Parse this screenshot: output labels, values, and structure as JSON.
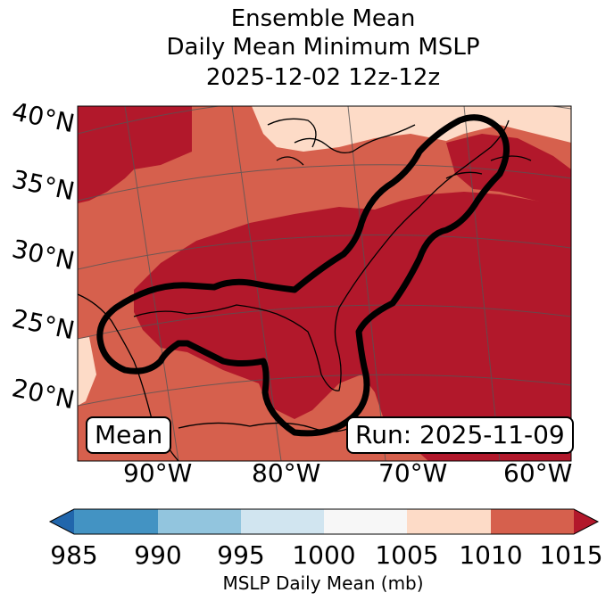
{
  "title": {
    "line1": "Ensemble Mean",
    "line2": "Daily Mean Minimum MSLP",
    "line3": "2025-12-02 12z-12z"
  },
  "map": {
    "lat_labels": [
      "40°N",
      "35°N",
      "30°N",
      "25°N",
      "20°N"
    ],
    "lon_labels": [
      "90°W",
      "80°W",
      "70°W",
      "60°W"
    ],
    "left_box": "Mean",
    "right_box": "Run: 2025-11-09"
  },
  "colorbar": {
    "ticks": [
      "985",
      "990",
      "995",
      "1000",
      "1005",
      "1010",
      "1015"
    ],
    "label": "MSLP Daily Mean (mb)",
    "colors": [
      "#2166ac",
      "#4393c3",
      "#92c5de",
      "#d1e5f0",
      "#f7f7f7",
      "#fddbc7",
      "#d6604d",
      "#b2182b"
    ]
  }
}
